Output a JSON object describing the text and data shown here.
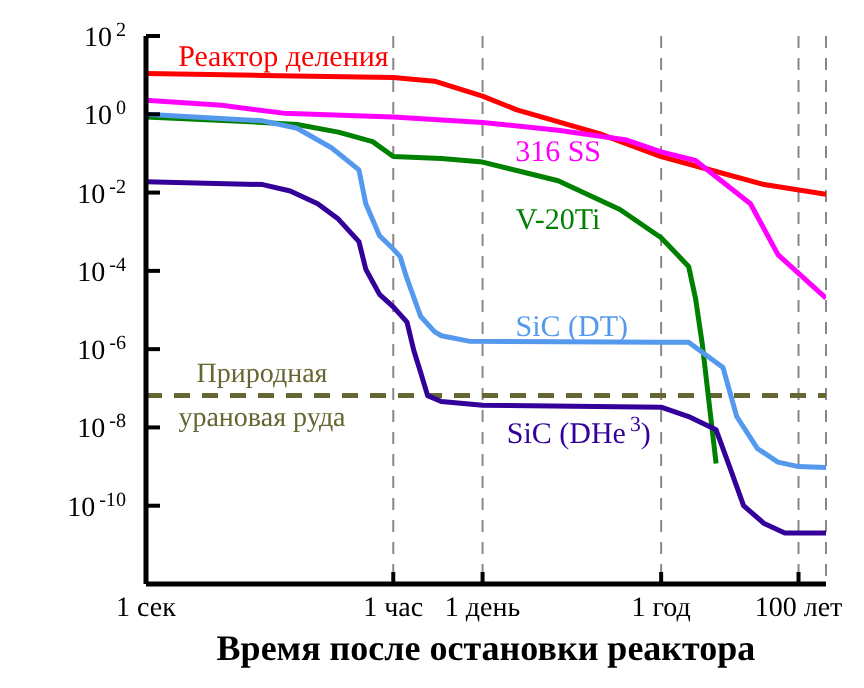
{
  "chart_data": {
    "type": "line",
    "xlabel": "Время после остановки реактора",
    "log": true,
    "grid": "x",
    "marker": "none",
    "line_style": "solid",
    "categories": [
      "1 сек",
      null,
      null,
      null,
      null,
      null,
      null,
      null,
      null,
      null,
      null,
      null,
      null,
      null,
      null,
      null,
      null,
      null,
      null,
      null,
      null,
      null,
      null,
      null,
      null,
      null,
      null,
      null,
      null,
      null,
      null,
      null,
      null,
      null,
      null,
      null,
      "1 час",
      null,
      null,
      null,
      null,
      null,
      null,
      null,
      null,
      null,
      null,
      null,
      null,
      "1 день",
      null,
      null,
      null,
      null,
      null,
      null,
      null,
      null,
      null,
      null,
      null,
      null,
      null,
      null,
      null,
      null,
      null,
      null,
      null,
      null,
      null,
      null,
      null,
      null,
      null,
      "1 год",
      null,
      null,
      null,
      null,
      null,
      null,
      null,
      null,
      null,
      null,
      null,
      null,
      null,
      null,
      null,
      null,
      null,
      null,
      null,
      "100 лет",
      null,
      null,
      null,
      null
    ],
    "ylim": [
      1e-12,
      100
    ],
    "yticks": [
      {
        "value": 100,
        "label": "10$^{2}$"
      },
      {
        "value": 1,
        "label": "10$^{0}$"
      },
      {
        "value": 0.01,
        "label": "10$^{-2}$"
      },
      {
        "value": 0.0001,
        "label": "10$^{-4}$"
      },
      {
        "value": 1e-06,
        "label": "10$^{-6}$"
      },
      {
        "value": 1e-08,
        "label": "10$^{-8}$"
      },
      {
        "value": 1e-10,
        "label": "10$^{-10}$"
      },
      {
        "value": 1e-12,
        "label": null
      }
    ],
    "series": [
      {
        "name": "Реактор деления",
        "color": "#ff0000",
        "values": [
          11,
          null,
          null,
          null,
          null,
          null,
          null,
          null,
          null,
          null,
          null,
          null,
          null,
          null,
          null,
          null,
          null,
          9.8,
          null,
          null,
          null,
          null,
          null,
          null,
          null,
          null,
          null,
          null,
          null,
          null,
          null,
          null,
          null,
          null,
          null,
          null,
          8.7,
          null,
          null,
          null,
          null,
          null,
          7,
          null,
          null,
          null,
          null,
          null,
          null,
          2.9,
          null,
          null,
          null,
          null,
          1.3,
          null,
          null,
          null,
          null,
          null,
          null,
          null,
          null,
          null,
          null,
          null,
          0.32,
          null,
          null,
          null,
          null,
          null,
          null,
          null,
          null,
          0.083,
          null,
          null,
          null,
          null,
          null,
          0.043,
          null,
          null,
          null,
          null,
          null,
          null,
          null,
          null,
          0.016,
          null,
          null,
          null,
          null,
          null,
          null,
          null,
          null,
          0.0091
        ]
      },
      {
        "name": "316 SS",
        "color": "#ff00ff",
        "values": [
          2.3,
          null,
          null,
          null,
          null,
          null,
          null,
          null,
          null,
          null,
          null,
          1.7,
          null,
          null,
          null,
          null,
          null,
          null,
          null,
          null,
          1.07,
          null,
          null,
          null,
          null,
          null,
          null,
          null,
          null,
          null,
          null,
          null,
          null,
          null,
          null,
          null,
          0.85,
          null,
          null,
          null,
          null,
          null,
          null,
          null,
          null,
          null,
          null,
          null,
          null,
          0.62,
          null,
          null,
          null,
          null,
          null,
          null,
          null,
          null,
          null,
          null,
          0.39,
          null,
          null,
          null,
          null,
          null,
          null,
          null,
          null,
          null,
          0.22,
          null,
          null,
          null,
          null,
          0.11,
          null,
          null,
          null,
          null,
          0.066,
          null,
          null,
          null,
          null,
          null,
          null,
          null,
          0.0052,
          null,
          null,
          null,
          0.00026,
          null,
          null,
          null,
          null,
          null,
          null,
          2e-05
        ]
      },
      {
        "name": "V-20Ti",
        "color": "#008000",
        "values": [
          0.85,
          null,
          null,
          null,
          null,
          null,
          null,
          null,
          null,
          null,
          null,
          null,
          null,
          null,
          null,
          null,
          null,
          0.62,
          null,
          null,
          null,
          null,
          0.55,
          null,
          null,
          null,
          null,
          null,
          0.35,
          null,
          null,
          null,
          null,
          0.2,
          null,
          null,
          0.083,
          null,
          null,
          null,
          null,
          null,
          null,
          0.074,
          null,
          null,
          null,
          null,
          null,
          0.06,
          null,
          null,
          null,
          null,
          null,
          null,
          null,
          null,
          null,
          null,
          0.02,
          null,
          null,
          null,
          null,
          null,
          null,
          null,
          null,
          0.0037,
          null,
          null,
          null,
          null,
          null,
          0.0007,
          null,
          null,
          null,
          0.00013,
          2e-05,
          1.3e-06,
          null,
          1.2e-09,
          null,
          null,
          null,
          null,
          null,
          null,
          null,
          null,
          null,
          null,
          null,
          null,
          null,
          null,
          null,
          null
        ]
      },
      {
        "name": "SiC (DT)",
        "color": "#5599ee",
        "values": [
          1,
          null,
          null,
          null,
          null,
          null,
          null,
          null,
          null,
          null,
          null,
          null,
          null,
          null,
          null,
          null,
          null,
          0.68,
          null,
          null,
          null,
          null,
          0.44,
          null,
          null,
          null,
          null,
          0.14,
          null,
          null,
          null,
          0.038,
          0.0052,
          null,
          0.00079,
          null,
          0.00036,
          0.00023,
          6.3e-05,
          null,
          6.8e-06,
          null,
          2.8e-06,
          2.2e-06,
          null,
          null,
          null,
          1.6e-06,
          null,
          null,
          null,
          null,
          null,
          null,
          null,
          null,
          null,
          null,
          null,
          null,
          null,
          null,
          null,
          null,
          null,
          null,
          null,
          null,
          null,
          null,
          null,
          null,
          null,
          null,
          null,
          1.5e-06,
          null,
          null,
          null,
          1.5e-06,
          null,
          null,
          null,
          null,
          3.4e-07,
          null,
          1.9e-08,
          null,
          null,
          2.9e-09,
          null,
          null,
          1.3e-09,
          null,
          null,
          1e-09,
          null,
          null,
          null,
          9.5e-10
        ]
      },
      {
        "name": "SiC (DHe$^{3}$)",
        "color": "#330099",
        "values": [
          0.019,
          null,
          null,
          null,
          null,
          null,
          null,
          null,
          null,
          null,
          null,
          null,
          null,
          null,
          null,
          null,
          null,
          0.016,
          null,
          null,
          null,
          0.011,
          null,
          null,
          null,
          0.0052,
          null,
          null,
          0.0021,
          null,
          null,
          0.00056,
          0.00011,
          null,
          2.5e-05,
          null,
          1.2e-05,
          null,
          4.9e-06,
          9.1e-07,
          2.5e-07,
          6.5e-08,
          null,
          4.6e-08,
          null,
          null,
          null,
          null,
          null,
          3.7e-08,
          null,
          null,
          null,
          null,
          null,
          null,
          null,
          null,
          null,
          null,
          null,
          null,
          null,
          null,
          null,
          null,
          null,
          null,
          null,
          null,
          null,
          null,
          null,
          null,
          null,
          3.3e-08,
          null,
          null,
          null,
          1.9e-08,
          null,
          null,
          null,
          8.7e-09,
          null,
          9.5e-10,
          null,
          1e-10,
          null,
          null,
          3.5e-11,
          null,
          null,
          2e-11,
          null,
          null,
          null,
          null,
          null,
          2e-11
        ]
      }
    ],
    "ref_lines": [
      {
        "axis": "y",
        "value": 6.5e-08,
        "label": "Природная урановая руда",
        "color": "#666633",
        "line_style": "dashed"
      }
    ]
  }
}
